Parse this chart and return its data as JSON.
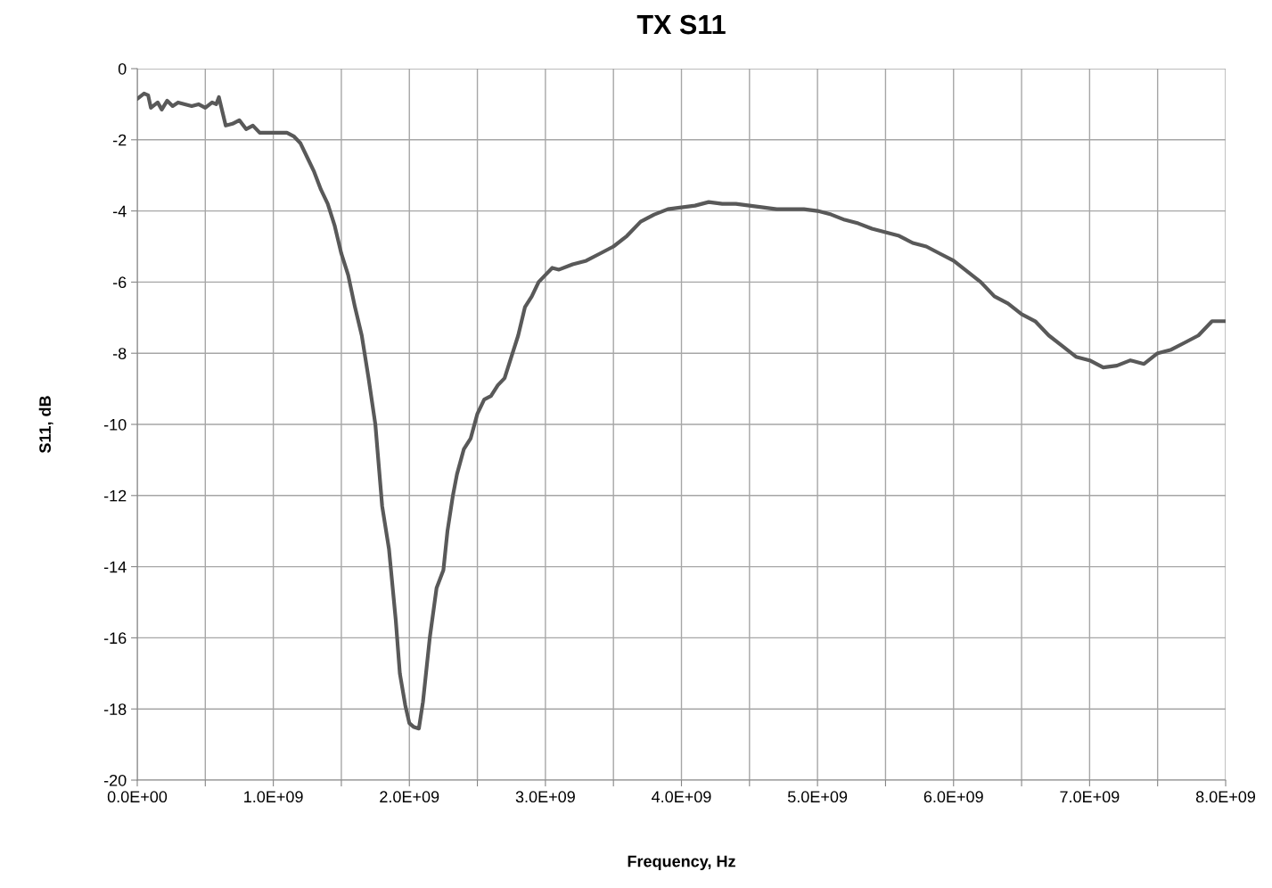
{
  "chart_data": {
    "type": "line",
    "title": "TX S11",
    "xlabel": "Frequency, Hz",
    "ylabel": "S11, dB",
    "xlim": [
      0,
      8000000000
    ],
    "ylim": [
      -20,
      0
    ],
    "xticks": [
      {
        "value": 0,
        "label": "0.0E+00"
      },
      {
        "value": 500000000,
        "label": null
      },
      {
        "value": 1000000000,
        "label": "1.0E+09"
      },
      {
        "value": 1500000000,
        "label": null
      },
      {
        "value": 2000000000,
        "label": "2.0E+09"
      },
      {
        "value": 2500000000,
        "label": null
      },
      {
        "value": 3000000000,
        "label": "3.0E+09"
      },
      {
        "value": 3500000000,
        "label": null
      },
      {
        "value": 4000000000,
        "label": "4.0E+09"
      },
      {
        "value": 4500000000,
        "label": null
      },
      {
        "value": 5000000000,
        "label": "5.0E+09"
      },
      {
        "value": 5500000000,
        "label": null
      },
      {
        "value": 6000000000,
        "label": "6.0E+09"
      },
      {
        "value": 6500000000,
        "label": null
      },
      {
        "value": 7000000000,
        "label": "7.0E+09"
      },
      {
        "value": 7500000000,
        "label": null
      },
      {
        "value": 8000000000,
        "label": "8.0E+09"
      }
    ],
    "yticks": [
      -20,
      -18,
      -16,
      -14,
      -12,
      -10,
      -8,
      -6,
      -4,
      -2,
      0
    ],
    "grid": true,
    "legend": false,
    "marker": "none",
    "line_style": "solid",
    "series": [
      {
        "color": "#595959",
        "x": [
          0,
          50000000,
          80000000,
          100000000,
          150000000,
          180000000,
          220000000,
          260000000,
          300000000,
          350000000,
          400000000,
          450000000,
          500000000,
          550000000,
          580000000,
          600000000,
          650000000,
          700000000,
          750000000,
          800000000,
          850000000,
          900000000,
          1000000000,
          1100000000,
          1150000000,
          1200000000,
          1250000000,
          1300000000,
          1350000000,
          1400000000,
          1450000000,
          1500000000,
          1550000000,
          1600000000,
          1650000000,
          1700000000,
          1750000000,
          1800000000,
          1850000000,
          1900000000,
          1930000000,
          1970000000,
          2000000000,
          2030000000,
          2070000000,
          2100000000,
          2150000000,
          2200000000,
          2250000000,
          2280000000,
          2320000000,
          2350000000,
          2400000000,
          2450000000,
          2500000000,
          2550000000,
          2600000000,
          2650000000,
          2700000000,
          2750000000,
          2800000000,
          2850000000,
          2900000000,
          2950000000,
          3000000000,
          3050000000,
          3100000000,
          3200000000,
          3300000000,
          3400000000,
          3500000000,
          3600000000,
          3700000000,
          3800000000,
          3900000000,
          4000000000,
          4100000000,
          4200000000,
          4300000000,
          4400000000,
          4500000000,
          4600000000,
          4700000000,
          4800000000,
          4900000000,
          5000000000,
          5100000000,
          5200000000,
          5300000000,
          5400000000,
          5500000000,
          5600000000,
          5700000000,
          5800000000,
          5900000000,
          6000000000,
          6100000000,
          6200000000,
          6300000000,
          6400000000,
          6500000000,
          6600000000,
          6700000000,
          6800000000,
          6900000000,
          7000000000,
          7100000000,
          7200000000,
          7300000000,
          7400000000,
          7500000000,
          7600000000,
          7700000000,
          7800000000,
          7900000000,
          8000000000
        ],
        "values": [
          -0.85,
          -0.7,
          -0.75,
          -1.1,
          -0.95,
          -1.15,
          -0.9,
          -1.05,
          -0.95,
          -1.0,
          -1.05,
          -1.0,
          -1.1,
          -0.95,
          -1.0,
          -0.8,
          -1.6,
          -1.55,
          -1.45,
          -1.7,
          -1.6,
          -1.8,
          -1.8,
          -1.8,
          -1.9,
          -2.1,
          -2.5,
          -2.9,
          -3.4,
          -3.8,
          -4.4,
          -5.2,
          -5.8,
          -6.7,
          -7.5,
          -8.7,
          -10.0,
          -12.3,
          -13.5,
          -15.5,
          -17.0,
          -17.9,
          -18.4,
          -18.5,
          -18.55,
          -17.8,
          -16.0,
          -14.6,
          -14.1,
          -13.0,
          -12.0,
          -11.4,
          -10.7,
          -10.4,
          -9.7,
          -9.3,
          -9.2,
          -8.9,
          -8.7,
          -8.1,
          -7.5,
          -6.7,
          -6.4,
          -6.0,
          -5.8,
          -5.6,
          -5.65,
          -5.5,
          -5.4,
          -5.2,
          -5.0,
          -4.7,
          -4.3,
          -4.1,
          -3.95,
          -3.9,
          -3.85,
          -3.75,
          -3.8,
          -3.8,
          -3.85,
          -3.9,
          -3.95,
          -3.95,
          -3.95,
          -4.0,
          -4.1,
          -4.25,
          -4.35,
          -4.5,
          -4.6,
          -4.7,
          -4.9,
          -5.0,
          -5.2,
          -5.4,
          -5.7,
          -6.0,
          -6.4,
          -6.6,
          -6.9,
          -7.1,
          -7.5,
          -7.8,
          -8.1,
          -8.2,
          -8.4,
          -8.35,
          -8.2,
          -8.3,
          -8.0,
          -7.9,
          -7.7,
          -7.5,
          -7.1,
          -7.1
        ]
      }
    ]
  }
}
